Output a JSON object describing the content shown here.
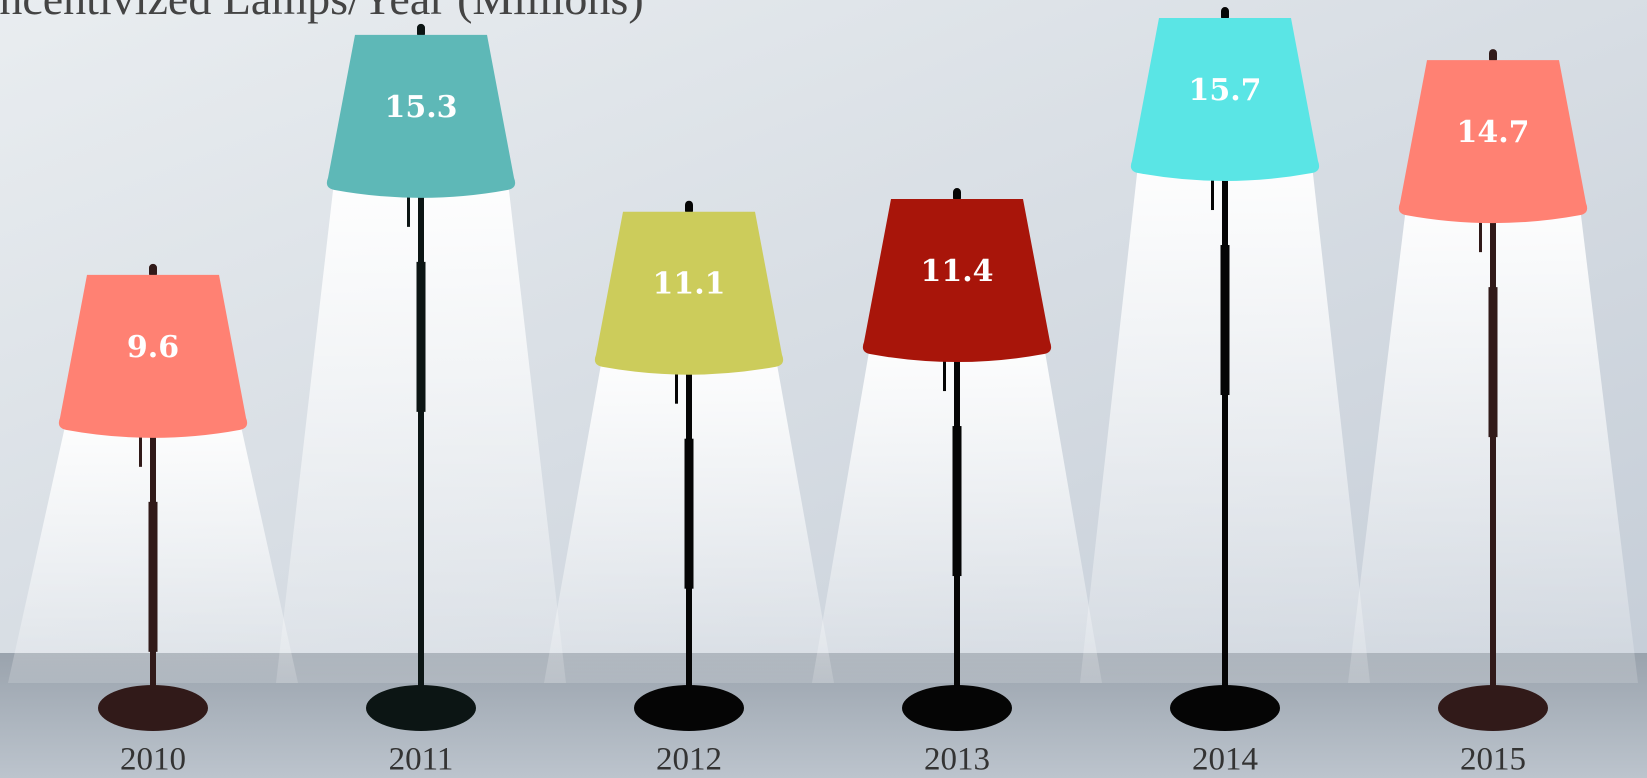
{
  "chart_data": {
    "type": "bar",
    "title": "Incentivized Lamps/Year (Millions)",
    "categories": [
      "2010",
      "2011",
      "2012",
      "2013",
      "2014",
      "2015"
    ],
    "values": [
      9.6,
      15.3,
      11.1,
      11.4,
      15.7,
      14.7
    ],
    "colors": [
      "#ff8173",
      "#5eb8b7",
      "#cccc5b",
      "#a8150a",
      "#5ae5e5",
      "#ff8173"
    ],
    "stand_colors": [
      "#311a19",
      "#0c1514",
      "#050505",
      "#050505",
      "#050505",
      "#311a19"
    ]
  }
}
